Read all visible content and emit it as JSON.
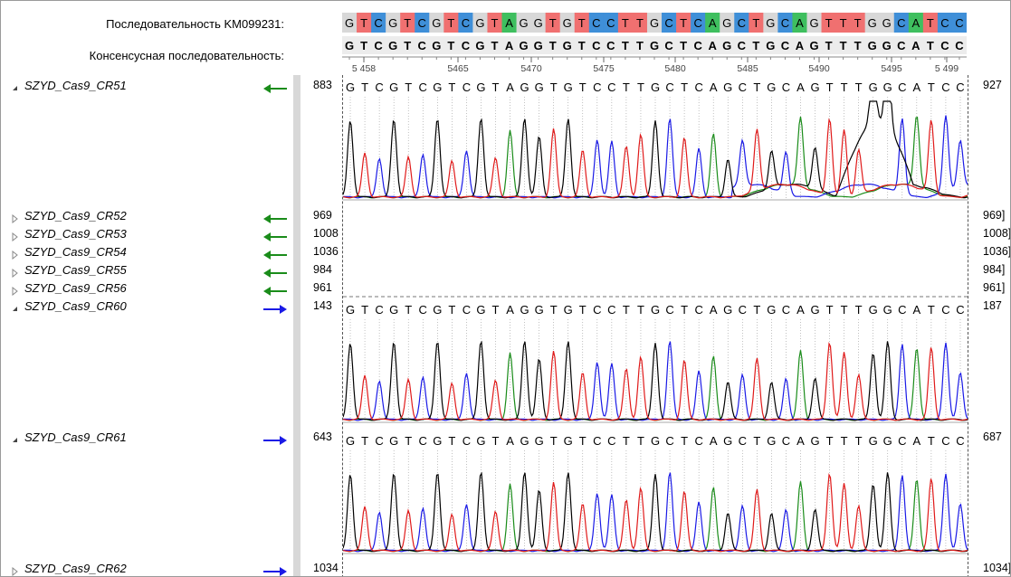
{
  "header": {
    "reference_label": "Последовательность KM099231:",
    "consensus_label": "Консенсусная последовательность:"
  },
  "reference_sequence": "GTCGTCGTCGTAGGTGTCCTTGCTCAGCTGCAGTTTGGCATCC",
  "consensus_sequence": "GTCGTCGTCGTAGGTGTCCTTGCTCAGCTGCAGTTTGGCATCC",
  "ruler": {
    "ticks": [
      "5 458",
      "5465",
      "5470",
      "5475",
      "5480",
      "5485",
      "5490",
      "5495",
      "5 499"
    ]
  },
  "base_colors": {
    "A": "#3fbf5f",
    "C": "#3f8fd8",
    "G": "#d8d8d8",
    "T": "#f07070"
  },
  "trace_colors": {
    "A": "#1a8c1a",
    "C": "#1a1ae6",
    "G": "#000000",
    "T": "#e01a1a"
  },
  "reads": [
    {
      "name": "SZYD_Cas9_CR51",
      "expanded": true,
      "direction": "reverse",
      "start": "883",
      "end": "927",
      "called": "GTCGTCGTCGTAGGTGTCCTTGCTCAGCTGCAGTTTGGCATCC"
    },
    {
      "name": "SZYD_Cas9_CR52",
      "expanded": false,
      "direction": "reverse",
      "start": "969",
      "end": "969]"
    },
    {
      "name": "SZYD_Cas9_CR53",
      "expanded": false,
      "direction": "reverse",
      "start": "1008",
      "end": "1008]"
    },
    {
      "name": "SZYD_Cas9_CR54",
      "expanded": false,
      "direction": "reverse",
      "start": "1036",
      "end": "1036]"
    },
    {
      "name": "SZYD_Cas9_CR55",
      "expanded": false,
      "direction": "reverse",
      "start": "984",
      "end": "984]"
    },
    {
      "name": "SZYD_Cas9_CR56",
      "expanded": false,
      "direction": "reverse",
      "start": "961",
      "end": "961]"
    },
    {
      "name": "SZYD_Cas9_CR60",
      "expanded": true,
      "direction": "forward",
      "start": "143",
      "end": "187",
      "called": "GTCGTCGTCGTAGGTGTCCTTGCTCAGCTGCAGTTTGGCATCC"
    },
    {
      "name": "SZYD_Cas9_CR61",
      "expanded": true,
      "direction": "forward",
      "start": "643",
      "end": "687",
      "called": "GTCGTCGTCGTAGGTGTCCTTGCTCAGCTGCAGTTTGGCATCC"
    },
    {
      "name": "SZYD_Cas9_CR62",
      "expanded": false,
      "direction": "forward",
      "start": "1034",
      "end": "1034]"
    }
  ],
  "arrow_colors": {
    "reverse": "#1a8c1a",
    "forward": "#1a1ae6"
  }
}
